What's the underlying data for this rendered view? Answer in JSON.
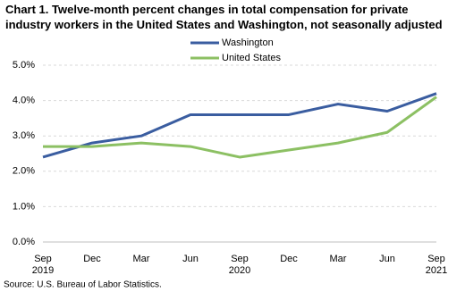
{
  "chart_data": {
    "type": "line",
    "title": "Chart 1. Twelve-month percent changes in total compensation for private industry workers in the United States and Washington, not seasonally adjusted",
    "categories": [
      "Sep 2019",
      "Dec",
      "Mar",
      "Jun",
      "Sep 2020",
      "Dec",
      "Mar",
      "Jun",
      "Sep 2021"
    ],
    "series": [
      {
        "name": "Washington",
        "color": "#3a5da0",
        "values": [
          2.4,
          2.8,
          3.0,
          3.6,
          3.6,
          3.6,
          3.9,
          3.7,
          4.2
        ]
      },
      {
        "name": "United States",
        "color": "#8cc063",
        "values": [
          2.7,
          2.7,
          2.8,
          2.7,
          2.4,
          2.6,
          2.8,
          3.1,
          4.1
        ]
      }
    ],
    "ylim": [
      0,
      5
    ],
    "yticks": [
      {
        "value": 0,
        "label": "0.0%"
      },
      {
        "value": 1,
        "label": "1.0%"
      },
      {
        "value": 2,
        "label": "2.0%"
      },
      {
        "value": 3,
        "label": "3.0%"
      },
      {
        "value": 4,
        "label": "4.0%"
      },
      {
        "value": 5,
        "label": "5.0%"
      }
    ],
    "grid": true,
    "source": "Source: U.S. Bureau of Labor Statistics."
  }
}
